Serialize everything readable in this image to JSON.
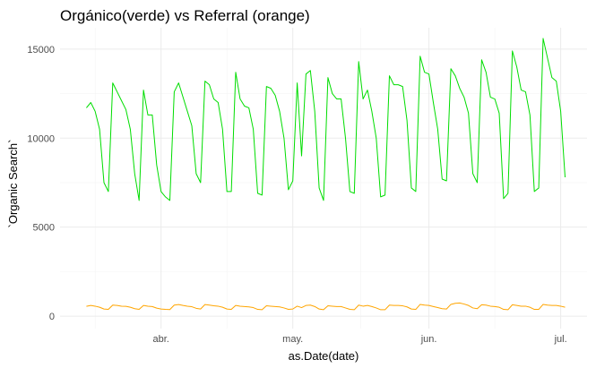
{
  "chart_data": {
    "type": "line",
    "title": "Orgánico(verde) vs Referral (orange)",
    "xlabel": "as.Date(date)",
    "ylabel": "`Organic Search`",
    "xlim": [
      "2021-03-09",
      "2021-07-07"
    ],
    "ylim": [
      -700,
      16200
    ],
    "y_ticks": [
      0,
      5000,
      10000,
      15000
    ],
    "y_tick_labels": [
      "0",
      "5000",
      "10000",
      "15000"
    ],
    "x_ticks": [
      "2021-04-01",
      "2021-05-01",
      "2021-06-01",
      "2021-07-01"
    ],
    "x_tick_labels": [
      "abr.",
      "may.",
      "jun.",
      "jul."
    ],
    "grid": true,
    "x": [
      "2021-03-15",
      "2021-03-16",
      "2021-03-17",
      "2021-03-18",
      "2021-03-19",
      "2021-03-20",
      "2021-03-21",
      "2021-03-22",
      "2021-03-23",
      "2021-03-24",
      "2021-03-25",
      "2021-03-26",
      "2021-03-27",
      "2021-03-28",
      "2021-03-29",
      "2021-03-30",
      "2021-03-31",
      "2021-04-01",
      "2021-04-02",
      "2021-04-03",
      "2021-04-04",
      "2021-04-05",
      "2021-04-06",
      "2021-04-07",
      "2021-04-08",
      "2021-04-09",
      "2021-04-10",
      "2021-04-11",
      "2021-04-12",
      "2021-04-13",
      "2021-04-14",
      "2021-04-15",
      "2021-04-16",
      "2021-04-17",
      "2021-04-18",
      "2021-04-19",
      "2021-04-20",
      "2021-04-21",
      "2021-04-22",
      "2021-04-23",
      "2021-04-24",
      "2021-04-25",
      "2021-04-26",
      "2021-04-27",
      "2021-04-28",
      "2021-04-29",
      "2021-04-30",
      "2021-05-01",
      "2021-05-02",
      "2021-05-03",
      "2021-05-04",
      "2021-05-05",
      "2021-05-06",
      "2021-05-07",
      "2021-05-08",
      "2021-05-09",
      "2021-05-10",
      "2021-05-11",
      "2021-05-12",
      "2021-05-13",
      "2021-05-14",
      "2021-05-15",
      "2021-05-16",
      "2021-05-17",
      "2021-05-18",
      "2021-05-19",
      "2021-05-20",
      "2021-05-21",
      "2021-05-22",
      "2021-05-23",
      "2021-05-24",
      "2021-05-25",
      "2021-05-26",
      "2021-05-27",
      "2021-05-28",
      "2021-05-29",
      "2021-05-30",
      "2021-05-31",
      "2021-06-01",
      "2021-06-02",
      "2021-06-03",
      "2021-06-04",
      "2021-06-05",
      "2021-06-06",
      "2021-06-07",
      "2021-06-08",
      "2021-06-09",
      "2021-06-10",
      "2021-06-11",
      "2021-06-12",
      "2021-06-13",
      "2021-06-14",
      "2021-06-15",
      "2021-06-16",
      "2021-06-17",
      "2021-06-18",
      "2021-06-19",
      "2021-06-20",
      "2021-06-21",
      "2021-06-22",
      "2021-06-23",
      "2021-06-24",
      "2021-06-25",
      "2021-06-26",
      "2021-06-27",
      "2021-06-28",
      "2021-06-29",
      "2021-06-30",
      "2021-07-01",
      "2021-07-02"
    ],
    "series": [
      {
        "color": "#00dd00",
        "values": [
          11700,
          12000,
          11500,
          10500,
          7500,
          7000,
          13100,
          12600,
          12100,
          11600,
          10500,
          8000,
          6500,
          12700,
          11300,
          11300,
          8500,
          7000,
          6700,
          6500,
          12600,
          13100,
          12300,
          11500,
          10700,
          8000,
          7500,
          13200,
          13000,
          12200,
          12000,
          10500,
          7000,
          7000,
          13700,
          12200,
          11800,
          11700,
          10500,
          6900,
          6800,
          12900,
          12800,
          12400,
          11500,
          10000,
          7100,
          7600,
          13100,
          9000,
          13600,
          13800,
          11500,
          7200,
          6500,
          13400,
          12500,
          12200,
          12200,
          10000,
          7000,
          6900,
          14300,
          12200,
          12700,
          11500,
          10000,
          6700,
          6800,
          13500,
          13000,
          13000,
          12900,
          11000,
          7200,
          7000,
          14600,
          13700,
          13600,
          12000,
          10500,
          7700,
          7600,
          13900,
          13500,
          12800,
          12300,
          11400,
          8000,
          7500,
          14400,
          13700,
          12300,
          12200,
          11400,
          6600,
          6900,
          14900,
          14000,
          12700,
          12600,
          11300,
          7000,
          7200,
          15600,
          14500,
          13400,
          13200,
          11500,
          7800
        ]
      },
      {
        "color": "#ffa500",
        "values": [
          550,
          600,
          560,
          500,
          400,
          380,
          620,
          600,
          560,
          550,
          500,
          420,
          380,
          600,
          560,
          540,
          450,
          400,
          380,
          370,
          620,
          650,
          600,
          560,
          530,
          440,
          400,
          650,
          620,
          580,
          560,
          500,
          400,
          380,
          600,
          560,
          540,
          520,
          480,
          380,
          360,
          580,
          560,
          540,
          520,
          460,
          380,
          400,
          560,
          480,
          600,
          620,
          540,
          400,
          360,
          580,
          560,
          540,
          540,
          460,
          380,
          360,
          620,
          560,
          600,
          540,
          460,
          360,
          360,
          620,
          600,
          600,
          580,
          520,
          400,
          380,
          660,
          620,
          600,
          540,
          480,
          420,
          400,
          660,
          720,
          740,
          680,
          600,
          460,
          420,
          640,
          620,
          560,
          540,
          500,
          380,
          360,
          640,
          600,
          560,
          560,
          500,
          380,
          380,
          660,
          620,
          600,
          600,
          560,
          500
        ]
      }
    ]
  }
}
